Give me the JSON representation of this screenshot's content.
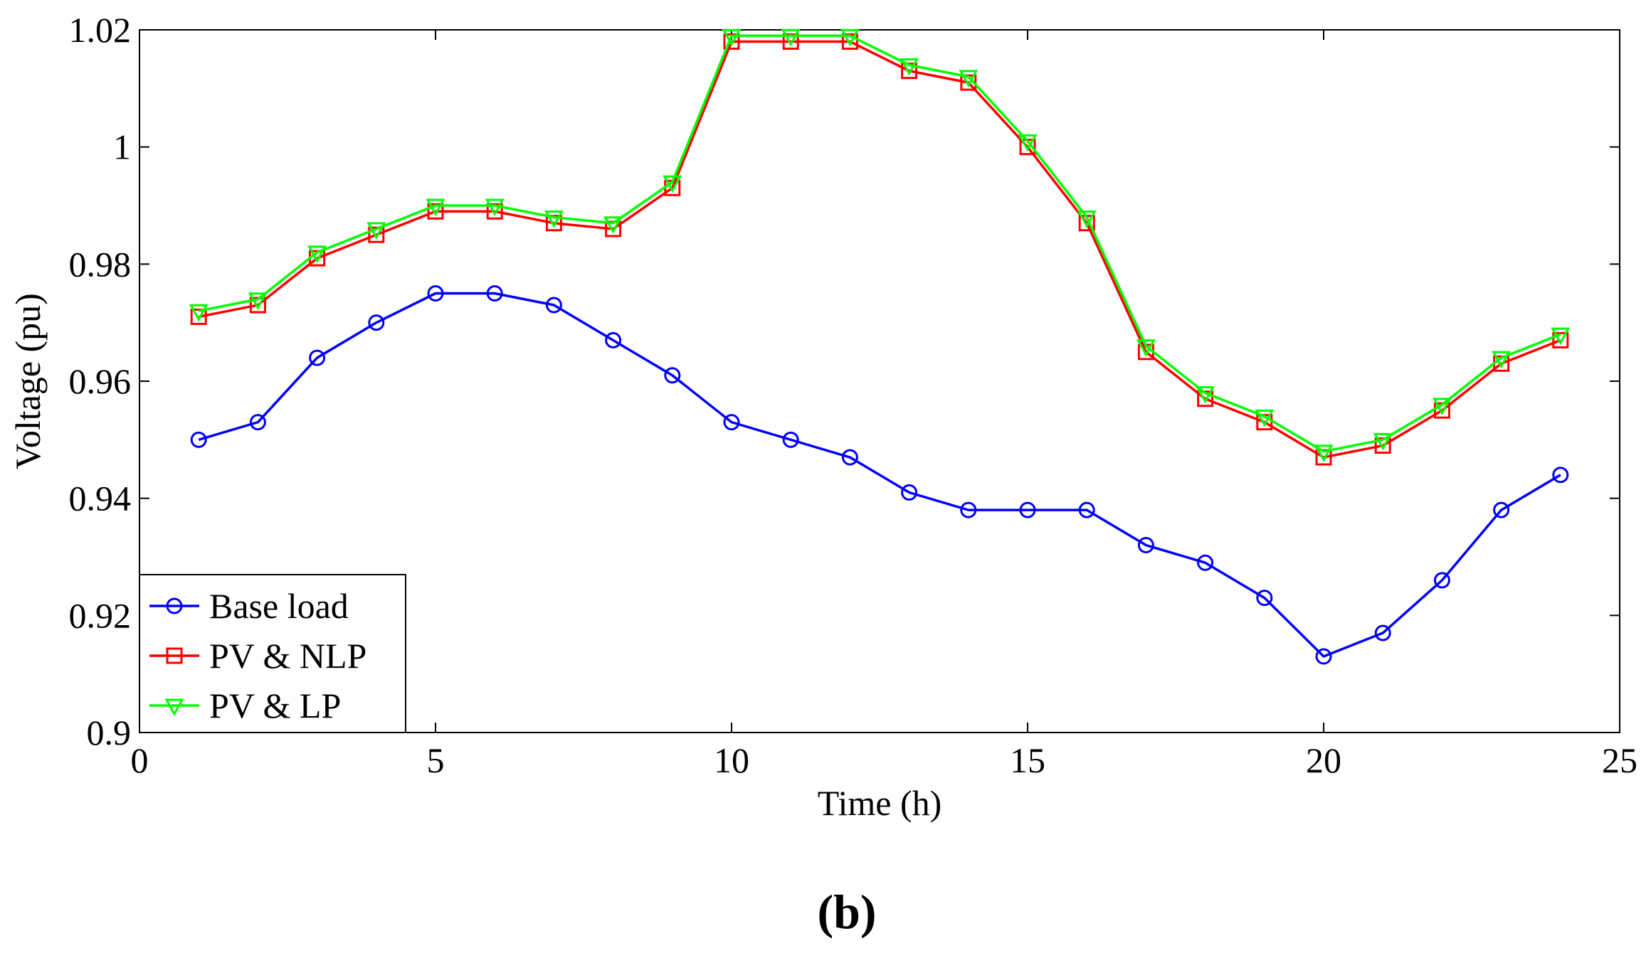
{
  "chart_data": {
    "type": "line",
    "title": "",
    "xlabel": "Time (h)",
    "ylabel": "Voltage (pu)",
    "xlim": [
      0,
      25
    ],
    "ylim": [
      0.9,
      1.02
    ],
    "xticks": [
      0,
      5,
      10,
      15,
      20,
      25
    ],
    "xtick_labels": [
      "0",
      "5",
      "10",
      "15",
      "20",
      "25"
    ],
    "yticks": [
      0.9,
      0.92,
      0.94,
      0.96,
      0.98,
      1.0,
      1.02
    ],
    "ytick_labels": [
      "0.9",
      "0.92",
      "0.94",
      "0.96",
      "0.98",
      "1",
      "1.02"
    ],
    "grid": false,
    "legend_position": "bottom-left",
    "x": [
      1,
      2,
      3,
      4,
      5,
      6,
      7,
      8,
      9,
      10,
      11,
      12,
      13,
      14,
      15,
      16,
      17,
      18,
      19,
      20,
      21,
      22,
      23,
      24
    ],
    "series": [
      {
        "name": "Base load",
        "color": "#0000FF",
        "marker": "circle",
        "values": [
          0.95,
          0.953,
          0.964,
          0.97,
          0.975,
          0.975,
          0.973,
          0.967,
          0.961,
          0.953,
          0.95,
          0.947,
          0.941,
          0.938,
          0.938,
          0.938,
          0.932,
          0.929,
          0.923,
          0.913,
          0.917,
          0.926,
          0.938,
          0.944
        ]
      },
      {
        "name": "PV & NLP",
        "color": "#FF0000",
        "marker": "square",
        "values": [
          0.971,
          0.973,
          0.981,
          0.985,
          0.989,
          0.989,
          0.987,
          0.986,
          0.993,
          1.018,
          1.018,
          1.018,
          1.013,
          1.011,
          1.0,
          0.987,
          0.965,
          0.957,
          0.953,
          0.947,
          0.949,
          0.955,
          0.963,
          0.967
        ]
      },
      {
        "name": "PV & LP",
        "color": "#00FF00",
        "marker": "triangle-down",
        "values": [
          0.972,
          0.974,
          0.982,
          0.986,
          0.99,
          0.99,
          0.988,
          0.987,
          0.994,
          1.019,
          1.019,
          1.019,
          1.014,
          1.012,
          1.001,
          0.988,
          0.966,
          0.958,
          0.954,
          0.948,
          0.95,
          0.956,
          0.964,
          0.968
        ]
      }
    ]
  },
  "panel_label": "(b)"
}
